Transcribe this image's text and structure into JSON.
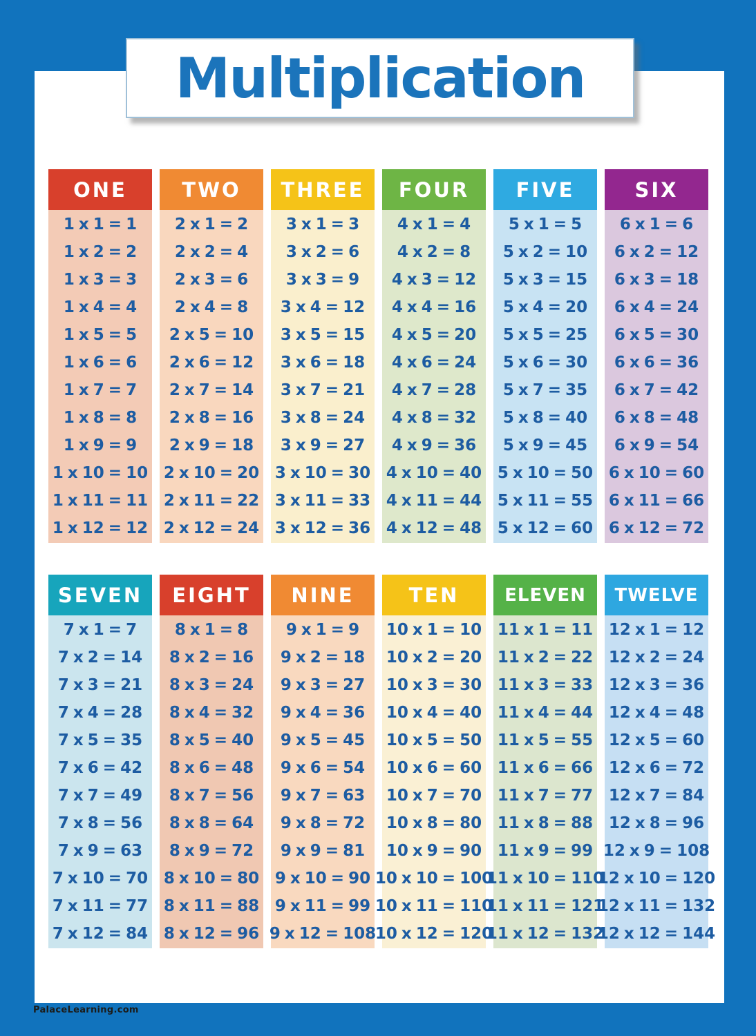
{
  "poster": {
    "title": "Multiplication",
    "footer": "PalaceLearning.com",
    "colors": {
      "page_blue": "#1173BD",
      "title_blue": "#1B74BB",
      "fact_blue": "#1D5CA2",
      "header_text": "#FFFFFF"
    },
    "tables": [
      {
        "columns": [
          {
            "label": "ONE",
            "header_color": "#D8402C",
            "body_color": "#F3CBB6",
            "facts": [
              "1 x 1 = 1",
              "1 x 2 = 2",
              "1 x 3 = 3",
              "1 x 4 = 4",
              "1 x 5 = 5",
              "1 x 6 = 6",
              "1 x 7 = 7",
              "1 x 8 = 8",
              "1 x 9 = 9",
              "1 x 10 = 10",
              "1 x 11 = 11",
              "1 x 12 = 12"
            ]
          },
          {
            "label": "TWO",
            "header_color": "#F08A33",
            "body_color": "#F9D7BE",
            "facts": [
              "2 x 1 = 2",
              "2 x 2 = 4",
              "2 x 3 = 6",
              "2 x 4 = 8",
              "2 x 5 = 10",
              "2 x 6 = 12",
              "2 x 7 = 14",
              "2 x 8 = 16",
              "2 x 9 = 18",
              "2 x 10 = 20",
              "2 x 11 = 22",
              "2 x 12 = 24"
            ]
          },
          {
            "label": "THREE",
            "header_color": "#F5C318",
            "body_color": "#FAEFCD",
            "facts": [
              "3 x 1 = 3",
              "3 x 2 = 6",
              "3 x 3 = 9",
              "3 x 4 = 12",
              "3 x 5 = 15",
              "3 x 6 = 18",
              "3 x 7 = 21",
              "3 x 8 = 24",
              "3 x 9 = 27",
              "3 x 10 = 30",
              "3 x 11 = 33",
              "3 x 12 = 36"
            ]
          },
          {
            "label": "FOUR",
            "header_color": "#6EB545",
            "body_color": "#DEE8CB",
            "facts": [
              "4 x 1 = 4",
              "4 x 2 = 8",
              "4 x 3 = 12",
              "4 x 4 = 16",
              "4 x 5 = 20",
              "4 x 6 = 24",
              "4 x 7 = 28",
              "4 x 8 = 32",
              "4 x 9 = 36",
              "4 x 10 = 40",
              "4 x 11 = 44",
              "4 x 12 = 48"
            ]
          },
          {
            "label": "FIVE",
            "header_color": "#2FAAE1",
            "body_color": "#C8E3F3",
            "facts": [
              "5 x 1 = 5",
              "5 x 2 = 10",
              "5 x 3 = 15",
              "5 x 4 = 20",
              "5 x 5 = 25",
              "5 x 6 = 30",
              "5 x 7 = 35",
              "5 x 8 = 40",
              "5 x 9 = 45",
              "5 x 10 = 50",
              "5 x 11 = 55",
              "5 x 12 = 60"
            ]
          },
          {
            "label": "SIX",
            "header_color": "#93278F",
            "body_color": "#DBC8DE",
            "facts": [
              "6 x 1 = 6",
              "6 x 2 = 12",
              "6 x 3 = 18",
              "6 x 4 = 24",
              "6 x 5 = 30",
              "6 x 6 = 36",
              "6 x 7 = 42",
              "6 x 8 = 48",
              "6 x 9 = 54",
              "6 x 10 = 60",
              "6 x 11 = 66",
              "6 x 12 = 72"
            ]
          }
        ]
      },
      {
        "columns": [
          {
            "label": "SEVEN",
            "header_color": "#17A5BC",
            "body_color": "#CBE5EE",
            "facts": [
              "7 x 1 = 7",
              "7 x 2 = 14",
              "7 x 3 = 21",
              "7 x 4 = 28",
              "7 x 5 = 35",
              "7 x 6 = 42",
              "7 x 7 = 49",
              "7 x 8 = 56",
              "7 x 9 = 63",
              "7 x 10 = 70",
              "7 x 11 = 77",
              "7 x 12 = 84"
            ]
          },
          {
            "label": "EIGHT",
            "header_color": "#D8402C",
            "body_color": "#F0C8B2",
            "facts": [
              "8 x 1 = 8",
              "8 x 2 = 16",
              "8 x 3 = 24",
              "8 x 4 = 32",
              "8 x 5 = 40",
              "8 x 6 = 48",
              "8 x 7 = 56",
              "8 x 8 = 64",
              "8 x 9 = 72",
              "8 x 10 = 80",
              "8 x 11 = 88",
              "8 x 12 = 96"
            ]
          },
          {
            "label": "NINE",
            "header_color": "#F08A33",
            "body_color": "#F9D9BF",
            "facts": [
              "9 x 1 = 9",
              "9 x 2 = 18",
              "9 x 3 = 27",
              "9 x 4 = 36",
              "9 x 5 = 45",
              "9 x 6 = 54",
              "9 x 7 = 63",
              "9 x 8 = 72",
              "9 x 9 = 81",
              "9 x 10 = 90",
              "9 x 11 = 99",
              "9 x 12 = 108"
            ]
          },
          {
            "label": "TEN",
            "header_color": "#F5C318",
            "body_color": "#FAF0D4",
            "facts": [
              "10 x 1 = 10",
              "10 x 2 = 20",
              "10 x 3 = 30",
              "10 x 4 = 40",
              "10 x 5 = 50",
              "10 x 6 = 60",
              "10 x 7 = 70",
              "10 x 8 = 80",
              "10 x 9 = 90",
              "10 x 10 = 100",
              "10 x 11 = 110",
              "10 x 12 = 120"
            ]
          },
          {
            "label": "ELEVEN",
            "header_color": "#55B248",
            "body_color": "#DCE6CE",
            "facts": [
              "11 x 1 = 11",
              "11 x 2 = 22",
              "11 x 3 = 33",
              "11 x 4 = 44",
              "11 x 5 = 55",
              "11 x 6 = 66",
              "11 x 7 = 77",
              "11 x 8 = 88",
              "11 x 9 = 99",
              "11 x 10 = 110",
              "11 x 11 = 121",
              "11 x 12 = 132"
            ]
          },
          {
            "label": "TWELVE",
            "header_color": "#2EA7E0",
            "body_color": "#C6DFF3",
            "facts": [
              "12 x 1 = 12",
              "12 x 2 = 24",
              "12 x 3 = 36",
              "12 x 4 = 48",
              "12 x 5 = 60",
              "12 x 6 = 72",
              "12 x 7 = 84",
              "12 x 8 = 96",
              "12 x 9 = 108",
              "12 x 10 = 120",
              "12 x 11 = 132",
              "12 x 12 = 144"
            ]
          }
        ]
      }
    ]
  }
}
